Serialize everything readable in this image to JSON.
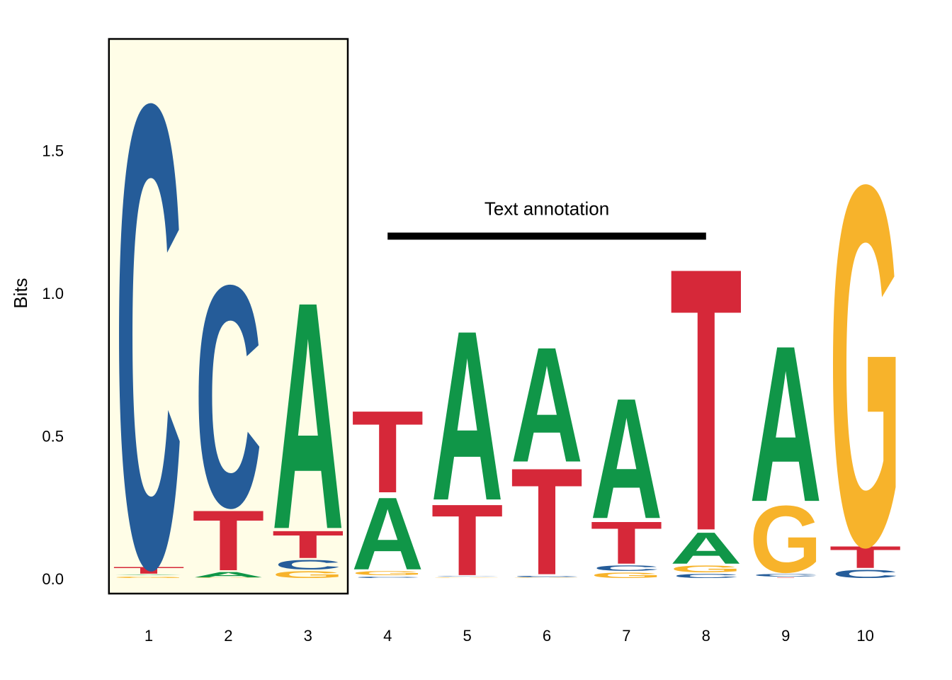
{
  "chart_data": {
    "type": "sequence-logo",
    "ylabel": "Bits",
    "ylim": [
      0,
      2
    ],
    "y_ticks": [
      "0.0",
      "0.5",
      "1.0",
      "1.5"
    ],
    "y_tick_values": [
      0,
      0.5,
      1.0,
      1.5
    ],
    "x_ticks": [
      "1",
      "2",
      "3",
      "4",
      "5",
      "6",
      "7",
      "8",
      "9",
      "10"
    ],
    "colors": {
      "A": "#109648",
      "C": "#255c99",
      "G": "#f7b32b",
      "T": "#d62839"
    },
    "highlight": {
      "from_position": 1,
      "to_position": 3,
      "fill": "#fffde7",
      "stroke": "#000000"
    },
    "annotation": {
      "text": "Text annotation",
      "from_position": 4,
      "to_position": 8,
      "y": 1.2
    },
    "positions": [
      {
        "pos": 1,
        "stack": [
          [
            "G",
            0.01
          ],
          [
            "A",
            0.005
          ],
          [
            "T",
            0.03
          ],
          [
            "C",
            1.695
          ]
        ]
      },
      {
        "pos": 2,
        "stack": [
          [
            "G",
            0.002
          ],
          [
            "A",
            0.025
          ],
          [
            "T",
            0.225
          ],
          [
            "C",
            0.815
          ]
        ]
      },
      {
        "pos": 3,
        "stack": [
          [
            "G",
            0.03
          ],
          [
            "C",
            0.04
          ],
          [
            "T",
            0.105
          ],
          [
            "A",
            0.835
          ]
        ]
      },
      {
        "pos": 4,
        "stack": [
          [
            "C",
            0.01
          ],
          [
            "G",
            0.02
          ],
          [
            "A",
            0.27
          ],
          [
            "T",
            0.305
          ]
        ]
      },
      {
        "pos": 5,
        "stack": [
          [
            "G",
            0.005
          ],
          [
            "C",
            0.005
          ],
          [
            "T",
            0.265
          ],
          [
            "A",
            0.625
          ]
        ]
      },
      {
        "pos": 6,
        "stack": [
          [
            "G",
            0.003
          ],
          [
            "C",
            0.01
          ],
          [
            "T",
            0.395
          ],
          [
            "A",
            0.425
          ]
        ]
      },
      {
        "pos": 7,
        "stack": [
          [
            "G",
            0.025
          ],
          [
            "C",
            0.025
          ],
          [
            "T",
            0.16
          ],
          [
            "A",
            0.445
          ]
        ]
      },
      {
        "pos": 8,
        "stack": [
          [
            "C",
            0.02
          ],
          [
            "G",
            0.03
          ],
          [
            "A",
            0.12
          ],
          [
            "T",
            0.965
          ]
        ]
      },
      {
        "pos": 9,
        "stack": [
          [
            "T",
            0.005
          ],
          [
            "C",
            0.015
          ],
          [
            "G",
            0.25
          ],
          [
            "A",
            0.575
          ]
        ]
      },
      {
        "pos": 10,
        "stack": [
          [
            "C",
            0.035
          ],
          [
            "T",
            0.085
          ],
          [
            "G",
            1.32
          ]
        ]
      }
    ]
  }
}
